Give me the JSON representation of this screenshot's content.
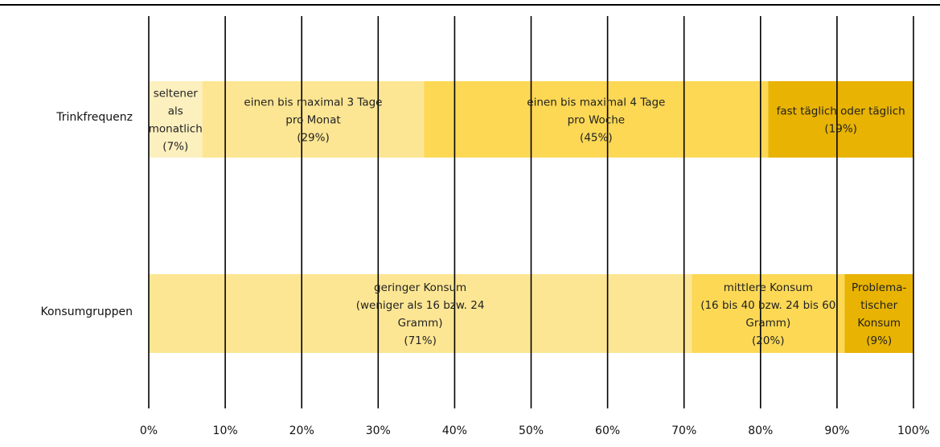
{
  "chart_data": {
    "type": "bar",
    "orientation": "horizontal",
    "stacked": true,
    "xlim": [
      0,
      100
    ],
    "x_unit": "%",
    "tick_labels": [
      "0%",
      "10%",
      "20%",
      "30%",
      "40%",
      "50%",
      "60%",
      "70%",
      "80%",
      "90%",
      "100%"
    ],
    "grid": true,
    "categories": [
      "Trinkfrequenz",
      "Konsumgruppen"
    ],
    "rows": [
      {
        "name": "Trinkfrequenz",
        "segments": [
          {
            "lines": [
              "seltener",
              "als",
              "monatlich",
              "(7%)"
            ],
            "value": 7,
            "color": "#fdf0bf"
          },
          {
            "lines": [
              "einen bis maximal 3 Tage",
              "pro Monat",
              "(29%)"
            ],
            "value": 29,
            "color": "#fde693"
          },
          {
            "lines": [
              "einen bis maximal 4 Tage",
              "pro Woche",
              "(45%)"
            ],
            "value": 45,
            "color": "#fcd855"
          },
          {
            "lines": [
              "fast täglich oder täglich",
              "(19%)"
            ],
            "value": 19,
            "color": "#e8b302"
          }
        ]
      },
      {
        "name": "Konsumgruppen",
        "segments": [
          {
            "lines": [
              "geringer Konsum",
              "(weniger als 16 bzw. 24",
              "Gramm)",
              "(71%)"
            ],
            "value": 71,
            "color": "#fde693"
          },
          {
            "lines": [
              "mittlere Konsum",
              "(16 bis 40 bzw. 24 bis 60",
              "Gramm)",
              "(20%)"
            ],
            "value": 20,
            "color": "#fcd855"
          },
          {
            "lines": [
              "Problema-",
              "tischer",
              "Konsum",
              "(9%)"
            ],
            "value": 9,
            "color": "#e8b302"
          }
        ]
      }
    ]
  }
}
